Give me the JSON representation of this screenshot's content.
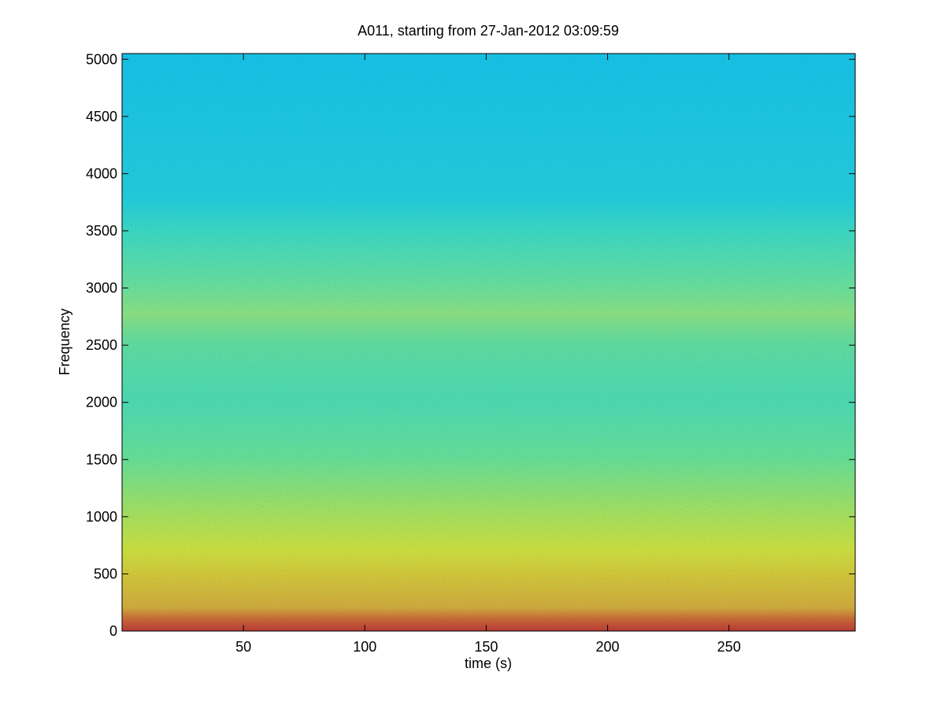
{
  "chart_data": {
    "type": "spectrogram",
    "title": "A011, starting from 27-Jan-2012 03:09:59",
    "x_label": "time (s)",
    "y_label": "Frequency",
    "xlim": [
      0,
      302
    ],
    "xticks": [
      50,
      100,
      150,
      200,
      250
    ],
    "ylim": [
      0,
      5050
    ],
    "yticks": [
      0,
      500,
      1000,
      1500,
      2000,
      2500,
      3000,
      3500,
      4000,
      4500,
      5000
    ]
  }
}
